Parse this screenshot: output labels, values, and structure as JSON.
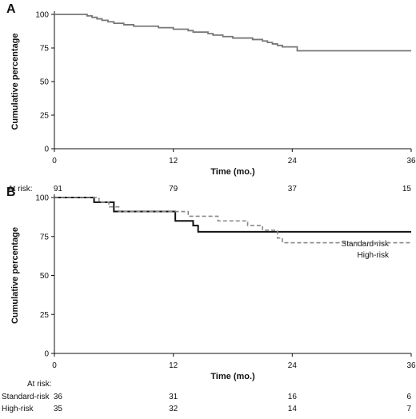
{
  "chart_data": [
    {
      "type": "line",
      "panel_label": "A",
      "xlabel": "Time (mo.)",
      "ylabel": "Cumulative percentage",
      "xlim": [
        0,
        36
      ],
      "ylim": [
        0,
        100
      ],
      "x_ticks": [
        0,
        12,
        24,
        36
      ],
      "y_ticks": [
        0,
        25,
        50,
        75,
        100
      ],
      "series": [
        {
          "color": "#777777",
          "dash": "solid",
          "step_points": [
            [
              0,
              100
            ],
            [
              3.3,
              98.9
            ],
            [
              3.8,
              97.8
            ],
            [
              4.3,
              96.7
            ],
            [
              4.8,
              95.6
            ],
            [
              5.4,
              94.5
            ],
            [
              6,
              93.4
            ],
            [
              7,
              92.3
            ],
            [
              8,
              91.2
            ],
            [
              10.5,
              90.1
            ],
            [
              12,
              89
            ],
            [
              13.5,
              87.9
            ],
            [
              14,
              86.8
            ],
            [
              15.5,
              85.7
            ],
            [
              16,
              84.6
            ],
            [
              17,
              83.5
            ],
            [
              18,
              82.4
            ],
            [
              20,
              81.3
            ],
            [
              21,
              80.2
            ],
            [
              21.5,
              79.1
            ],
            [
              22,
              78
            ],
            [
              22.5,
              76.9
            ],
            [
              23,
              75.8
            ],
            [
              24.5,
              72.9
            ],
            [
              36,
              72.9
            ]
          ]
        }
      ],
      "at_risk": {
        "header": "At risk:",
        "rows": [
          {
            "label": "",
            "values": [
              "91",
              "79",
              "37",
              "15"
            ]
          }
        ]
      }
    },
    {
      "type": "line",
      "panel_label": "B",
      "xlabel": "Time (mo.)",
      "ylabel": "Cumulative percentage",
      "xlim": [
        0,
        36
      ],
      "ylim": [
        0,
        100
      ],
      "x_ticks": [
        0,
        12,
        24,
        36
      ],
      "y_ticks": [
        0,
        25,
        50,
        75,
        100
      ],
      "series": [
        {
          "name": "Standard-risk",
          "color": "#111111",
          "dash": "solid",
          "step_points": [
            [
              0,
              100
            ],
            [
              4,
              97
            ],
            [
              6,
              91
            ],
            [
              12,
              91
            ],
            [
              12.2,
              85
            ],
            [
              14,
              82
            ],
            [
              14.5,
              78
            ],
            [
              36,
              78
            ]
          ]
        },
        {
          "name": "High-risk",
          "color": "#888888",
          "dash": "dashed",
          "step_points": [
            [
              0,
              100
            ],
            [
              4.5,
              97
            ],
            [
              5.5,
              94
            ],
            [
              6.5,
              91
            ],
            [
              12,
              91
            ],
            [
              13.5,
              88
            ],
            [
              16.5,
              85
            ],
            [
              19.5,
              82
            ],
            [
              21,
              79
            ],
            [
              22.5,
              74
            ],
            [
              23,
              71
            ],
            [
              36,
              71
            ]
          ]
        }
      ],
      "at_risk": {
        "header": "At risk:",
        "rows": [
          {
            "label": "Standard-risk",
            "values": [
              "36",
              "31",
              "16",
              "6"
            ]
          },
          {
            "label": "High-risk",
            "values": [
              "35",
              "32",
              "14",
              "7"
            ]
          }
        ]
      }
    }
  ]
}
